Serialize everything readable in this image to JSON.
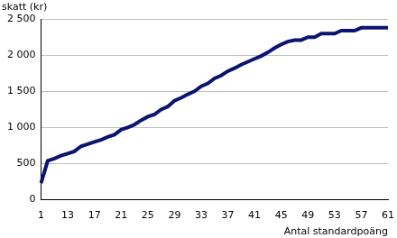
{
  "chart_data": {
    "type": "line",
    "ylabel": "skatt (kr)",
    "xlabel": "Antal standardpoäng",
    "categories": [
      1,
      null,
      null,
      null,
      13,
      null,
      null,
      null,
      17,
      null,
      null,
      null,
      21,
      null,
      null,
      null,
      25,
      null,
      null,
      null,
      29,
      null,
      null,
      null,
      33,
      null,
      null,
      null,
      37,
      null,
      null,
      null,
      41,
      null,
      null,
      null,
      45,
      null,
      null,
      null,
      49,
      null,
      null,
      null,
      53,
      null,
      null,
      null,
      57,
      null,
      null,
      null,
      61
    ],
    "values": [
      230,
      540,
      570,
      610,
      640,
      670,
      740,
      770,
      800,
      830,
      870,
      900,
      970,
      1000,
      1040,
      1100,
      1150,
      1180,
      1250,
      1290,
      1370,
      1410,
      1460,
      1500,
      1570,
      1610,
      1680,
      1720,
      1780,
      1820,
      1870,
      1910,
      1950,
      1990,
      2040,
      2100,
      2150,
      2190,
      2210,
      2210,
      2250,
      2250,
      2300,
      2300,
      2300,
      2340,
      2340,
      2340,
      2380,
      2380,
      2380,
      2380,
      2380
    ],
    "color": "#0b1470",
    "ylim": [
      0,
      2500
    ],
    "yticks": [
      0,
      500,
      {
        "value": 1000,
        "label": "1 000"
      },
      {
        "value": 1500,
        "label": "1 500"
      },
      {
        "value": 2000,
        "label": "2 000"
      },
      {
        "value": 2500,
        "label": "2 500"
      }
    ],
    "grid": true
  }
}
